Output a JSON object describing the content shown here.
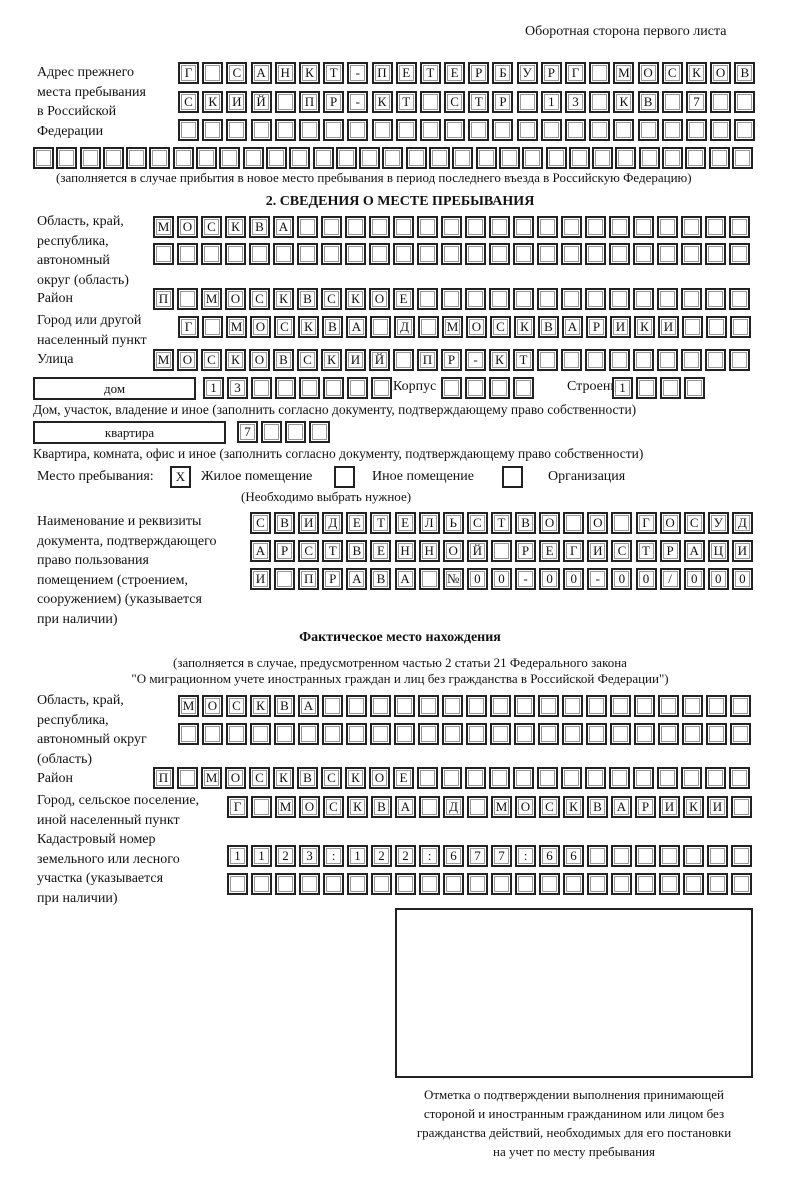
{
  "page_header": "Оборотная сторона первого листа",
  "previous_address": {
    "label": [
      "Адрес прежнего",
      "места пребывания",
      "в Российской",
      "Федерации"
    ],
    "rows": [
      [
        "Г",
        "",
        "С",
        "А",
        "Н",
        "К",
        "Т",
        "-",
        "П",
        "Е",
        "Т",
        "Е",
        "Р",
        "Б",
        "У",
        "Р",
        "Г",
        "",
        "М",
        "О",
        "С",
        "К",
        "О",
        "В"
      ],
      [
        "С",
        "К",
        "И",
        "Й",
        "",
        "П",
        "Р",
        "-",
        "К",
        "Т",
        "",
        "С",
        "Т",
        "Р",
        "",
        "1",
        "3",
        "",
        "К",
        "В",
        "",
        "7",
        "",
        ""
      ],
      [
        "",
        "",
        "",
        "",
        "",
        "",
        "",
        "",
        "",
        "",
        "",
        "",
        "",
        "",
        "",
        "",
        "",
        "",
        "",
        "",
        "",
        "",
        "",
        ""
      ],
      [
        "",
        "",
        "",
        "",
        "",
        "",
        "",
        "",
        "",
        "",
        "",
        "",
        "",
        "",
        "",
        "",
        "",
        "",
        "",
        "",
        "",
        "",
        "",
        "",
        "",
        "",
        "",
        "",
        "",
        "",
        ""
      ]
    ],
    "note": "(заполняется в случае прибытия в новое место пребывания в период последнего въезда в Российскую Федерацию)"
  },
  "section2": {
    "title": "2. СВЕДЕНИЯ О МЕСТЕ ПРЕБЫВАНИЯ",
    "region_label": [
      "Область, край,",
      "республика,",
      "автономный",
      "округ (область)"
    ],
    "region_rows": [
      [
        "М",
        "О",
        "С",
        "К",
        "В",
        "А",
        "",
        "",
        "",
        "",
        "",
        "",
        "",
        "",
        "",
        "",
        "",
        "",
        "",
        "",
        "",
        "",
        "",
        "",
        ""
      ],
      [
        "",
        "",
        "",
        "",
        "",
        "",
        "",
        "",
        "",
        "",
        "",
        "",
        "",
        "",
        "",
        "",
        "",
        "",
        "",
        "",
        "",
        "",
        "",
        "",
        ""
      ]
    ],
    "district_label": "Район",
    "district_row": [
      "П",
      "",
      "М",
      "О",
      "С",
      "К",
      "В",
      "С",
      "К",
      "О",
      "Е",
      "",
      "",
      "",
      "",
      "",
      "",
      "",
      "",
      "",
      "",
      "",
      "",
      "",
      ""
    ],
    "city_label": [
      "Город или другой",
      "населенный пункт"
    ],
    "city_row": [
      "Г",
      "",
      "М",
      "О",
      "С",
      "К",
      "В",
      "А",
      "",
      "Д",
      "",
      "М",
      "О",
      "С",
      "К",
      "В",
      "А",
      "Р",
      "И",
      "К",
      "И",
      "",
      "",
      ""
    ],
    "street_label": "Улица",
    "street_row": [
      "М",
      "О",
      "С",
      "К",
      "О",
      "В",
      "С",
      "К",
      "И",
      "Й",
      "",
      "П",
      "Р",
      "-",
      "К",
      "Т",
      "",
      "",
      "",
      "",
      "",
      "",
      "",
      "",
      ""
    ],
    "house_type": "дом",
    "house_cells": [
      "1",
      "3",
      "",
      "",
      "",
      "",
      "",
      ""
    ],
    "korpus_label": "Корпус",
    "korpus_cells": [
      "",
      "",
      "",
      ""
    ],
    "building_label": "Строение",
    "building_cells": [
      "1",
      "",
      "",
      ""
    ],
    "house_note": "Дом, участок, владение и иное (заполнить согласно документу, подтверждающему право собственности)",
    "flat_type": "квартира",
    "flat_cells": [
      "7",
      "",
      "",
      ""
    ],
    "flat_note": "Квартира, комната, офис и иное (заполнить согласно документу, подтверждающему право собственности)",
    "stay_place_label": "Место пребывания:",
    "stay_options": [
      {
        "label": "Жилое помещение",
        "mark": "X"
      },
      {
        "label": "Иное помещение",
        "mark": ""
      },
      {
        "label": "Организация",
        "mark": ""
      }
    ],
    "stay_hint": "(Необходимо выбрать нужное)",
    "document_label": [
      "Наименование и реквизиты",
      "документа, подтверждающего",
      "право пользования",
      "помещением (строением,",
      "сооружением) (указывается",
      "при наличии)"
    ],
    "document_rows": [
      [
        "С",
        "В",
        "И",
        "Д",
        "Е",
        "Т",
        "Е",
        "Л",
        "Ь",
        "С",
        "Т",
        "В",
        "О",
        "",
        "О",
        "",
        "Г",
        "О",
        "С",
        "У",
        "Д"
      ],
      [
        "А",
        "Р",
        "С",
        "Т",
        "В",
        "Е",
        "Н",
        "Н",
        "О",
        "Й",
        "",
        "Р",
        "Е",
        "Г",
        "И",
        "С",
        "Т",
        "Р",
        "А",
        "Ц",
        "И"
      ],
      [
        "И",
        "",
        "П",
        "Р",
        "А",
        "В",
        "А",
        "",
        "№",
        "0",
        "0",
        "-",
        "0",
        "0",
        "-",
        "0",
        "0",
        "/",
        "0",
        "0",
        "0"
      ]
    ]
  },
  "actual_location": {
    "title": "Фактическое место нахождения",
    "note": [
      "(заполняется в случае, предусмотренном частью 2 статьи 21 Федерального закона",
      "\"О миграционном учете иностранных граждан и лиц без гражданства в Российской Федерации\")"
    ],
    "region_label": [
      "Область, край,",
      "республика,",
      "автономный округ",
      "(область)"
    ],
    "region_rows": [
      [
        "М",
        "О",
        "С",
        "К",
        "В",
        "А",
        "",
        "",
        "",
        "",
        "",
        "",
        "",
        "",
        "",
        "",
        "",
        "",
        "",
        "",
        "",
        "",
        "",
        ""
      ],
      [
        "",
        "",
        "",
        "",
        "",
        "",
        "",
        "",
        "",
        "",
        "",
        "",
        "",
        "",
        "",
        "",
        "",
        "",
        "",
        "",
        "",
        "",
        "",
        ""
      ]
    ],
    "district_label": "Район",
    "district_row": [
      "П",
      "",
      "М",
      "О",
      "С",
      "К",
      "В",
      "С",
      "К",
      "О",
      "Е",
      "",
      "",
      "",
      "",
      "",
      "",
      "",
      "",
      "",
      "",
      "",
      "",
      "",
      ""
    ],
    "city_label": [
      "Город, сельское поселение,",
      "иной населенный пункт"
    ],
    "city_row": [
      "Г",
      "",
      "М",
      "О",
      "С",
      "К",
      "В",
      "А",
      "",
      "Д",
      "",
      "М",
      "О",
      "С",
      "К",
      "В",
      "А",
      "Р",
      "И",
      "К",
      "И",
      ""
    ],
    "cadastral_label": [
      "Кадастровый номер",
      "земельного или лесного",
      "участка (указывается",
      "при наличии)"
    ],
    "cadastral_rows": [
      [
        "1",
        "1",
        "2",
        "3",
        ":",
        "1",
        "2",
        "2",
        ":",
        "6",
        "7",
        "7",
        ":",
        "6",
        "6",
        "",
        "",
        "",
        "",
        "",
        "",
        ""
      ],
      [
        "",
        "",
        "",
        "",
        "",
        "",
        "",
        "",
        "",
        "",
        "",
        "",
        "",
        "",
        "",
        "",
        "",
        "",
        "",
        "",
        "",
        ""
      ]
    ]
  },
  "confirmation": {
    "caption": [
      "Отметка о подтверждении выполнения принимающей",
      "стороной и иностранным гражданином или лицом без",
      "гражданства действий, необходимых для его постановки",
      "на учет по месту пребывания"
    ]
  }
}
